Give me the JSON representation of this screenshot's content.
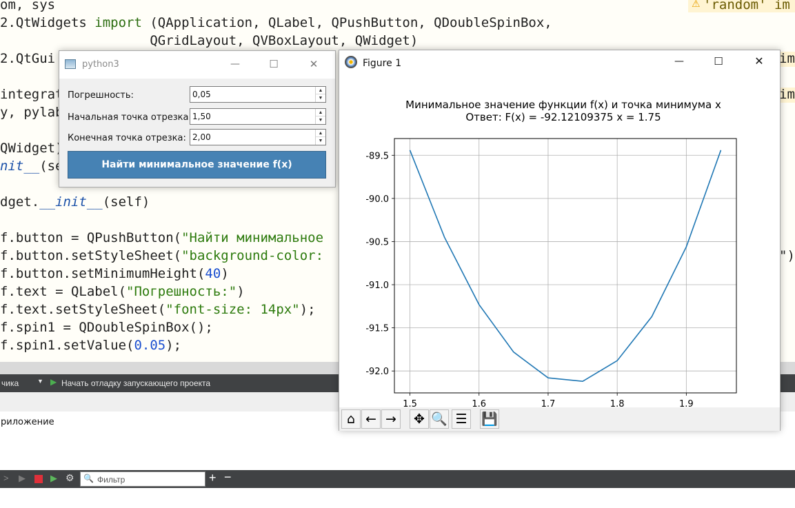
{
  "editor": {
    "warning_text": "'random' im",
    "lines": [
      {
        "plain": "om, sys"
      },
      {
        "pre": "2.QtWidgets ",
        "kw": "import",
        "post": " (QApplication, QLabel, QPushButton, QDoubleSpinBox,"
      },
      {
        "plain": "                   QGridLayout, QVBoxLayout, QWidget)"
      },
      {
        "plain": "2.QtGui"
      },
      {
        "plain": "integrat"
      },
      {
        "plain": "y, pylab"
      },
      {
        "plain": "QWidget)"
      },
      {
        "fn": "nit__",
        "post": "(se"
      },
      {
        "pre": "dget.",
        "fn": "__init__",
        "post": "(self)"
      },
      {
        "pre": "f.button = QPushButton(",
        "str": "\"Найти минимальное"
      },
      {
        "pre": "f.button.setStyleSheet(",
        "str": "\"background-color:"
      },
      {
        "pre": "f.button.setMinimumHeight(",
        "num": "40",
        "post": ")"
      },
      {
        "pre": "f.text = QLabel(",
        "str": "\"Погрешность:\"",
        "post": ")"
      },
      {
        "pre": "f.text.setStyleSheet(",
        "str": "\"font-size: 14px\"",
        "post": ");"
      },
      {
        "plain": "f.spin1 = QDoubleSpinBox();"
      },
      {
        "pre": "f.spin1.setValue(",
        "num": "0.05",
        "post": ");"
      }
    ],
    "right_fragments": [
      "im",
      "im",
      "\")"
    ]
  },
  "dialog": {
    "title": "python3",
    "fields": [
      {
        "label": "Погрешность:",
        "value": "0,05"
      },
      {
        "label": "Начальная точка отрезка:",
        "value": "1,50"
      },
      {
        "label": "Конечная точка отрезка:",
        "value": "2,00"
      }
    ],
    "button_label": "Найти минимальное значение f(x)"
  },
  "figure": {
    "window_title": "Figure 1"
  },
  "chart_data": {
    "type": "line",
    "title": "Минимальное значение функции f(x) и точка минимума x",
    "subtitle": "Ответ: F(x) = -92.12109375 x = 1.75",
    "x": [
      1.5,
      1.55,
      1.6,
      1.65,
      1.7,
      1.75,
      1.8,
      1.85,
      1.9,
      1.95
    ],
    "series": [
      {
        "values": [
          -89.44,
          -90.45,
          -91.23,
          -91.78,
          -92.08,
          -92.12,
          -91.88,
          -91.37,
          -90.56,
          -89.44
        ],
        "color": "#1f77b4"
      }
    ],
    "xticks": [
      "1.5",
      "1.6",
      "1.7",
      "1.8",
      "1.9"
    ],
    "xtick_values": [
      1.5,
      1.6,
      1.7,
      1.8,
      1.9
    ],
    "yticks": [
      "-89.5",
      "-90.0",
      "-90.5",
      "-91.0",
      "-91.5",
      "-92.0"
    ],
    "ytick_values": [
      -89.5,
      -90.0,
      -90.5,
      -91.0,
      -91.5,
      -92.0
    ],
    "xlim": [
      1.4775,
      1.9725
    ],
    "ylim": [
      -92.254,
      -89.306
    ],
    "grid": true
  },
  "ide": {
    "run_selector": "чика",
    "debug_label": "Начать отладку запускающего проекта",
    "app_output_label": "риложение",
    "filter_placeholder": "Фильтр"
  }
}
